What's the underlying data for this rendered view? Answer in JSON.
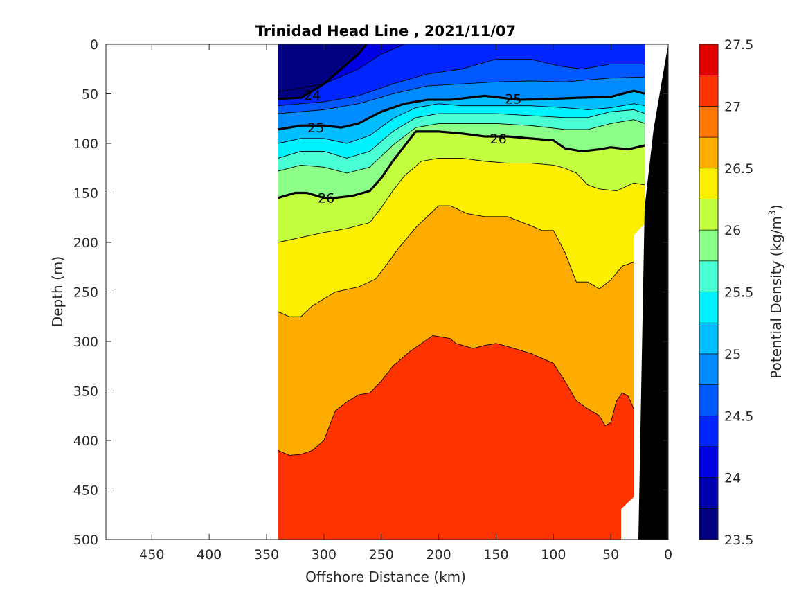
{
  "chart_data": {
    "type": "contour",
    "title": "Trinidad Head Line , 2021/11/07",
    "xlabel": "Offshore Distance (km)",
    "ylabel": "Depth (m)",
    "colorbar_label": "Potential Density (kg/m",
    "colorbar_label_sup": "3",
    "colorbar_label_close": ")",
    "xlim": [
      490,
      0
    ],
    "ylim": [
      0,
      500
    ],
    "x_reversed": true,
    "y_reversed": true,
    "xticks": [
      "450",
      "400",
      "350",
      "300",
      "250",
      "200",
      "150",
      "100",
      "50",
      "0"
    ],
    "yticks": [
      "0",
      "50",
      "100",
      "150",
      "200",
      "250",
      "300",
      "350",
      "400",
      "450",
      "500"
    ],
    "colorbar_range": [
      23.5,
      27.5
    ],
    "colorbar_ticks": [
      "23.5",
      "24",
      "24.5",
      "25",
      "25.5",
      "26",
      "26.5",
      "27",
      "27.5"
    ],
    "contour_interval": 0.25,
    "data_extent_km": [
      340,
      20
    ],
    "levels": [
      23.5,
      23.75,
      24.0,
      24.25,
      24.5,
      24.75,
      25.0,
      25.25,
      25.5,
      25.75,
      26.0,
      26.25,
      26.5,
      26.75,
      27.0,
      27.25
    ],
    "level_colors": [
      "#000080",
      "#0000b2",
      "#0000e5",
      "#0025ff",
      "#0058ff",
      "#008bff",
      "#00beff",
      "#00f1ff",
      "#49ffd4",
      "#8cff88",
      "#c3ff3f",
      "#fcf000",
      "#ffac00",
      "#ff7600",
      "#ff3300",
      "#e50000"
    ],
    "isopycnals": [
      {
        "level": 24.0,
        "x": [
          340,
          320,
          300,
          285,
          270,
          263
        ],
        "depth": [
          55,
          54,
          40,
          25,
          10,
          0
        ]
      },
      {
        "level": 24.25,
        "x": [
          340,
          300,
          270,
          250,
          230
        ],
        "depth": [
          48,
          40,
          25,
          10,
          0
        ]
      },
      {
        "level": 24.5,
        "x": [
          340,
          300,
          270,
          240,
          210,
          180,
          150,
          120,
          95,
          75,
          50,
          20
        ],
        "depth": [
          62,
          58,
          52,
          40,
          30,
          25,
          15,
          15,
          22,
          25,
          20,
          20
        ]
      },
      {
        "level": 24.75,
        "x": [
          340,
          300,
          270,
          240,
          210,
          180,
          150,
          120,
          90,
          70,
          50,
          20
        ],
        "depth": [
          70,
          66,
          60,
          50,
          42,
          40,
          38,
          37,
          38,
          36,
          34,
          33
        ]
      },
      {
        "level": 25.0,
        "x": [
          340,
          320,
          300,
          285,
          270,
          250,
          230,
          210,
          190,
          160,
          130,
          100,
          80,
          50,
          30,
          20
        ],
        "depth": [
          86,
          82,
          82,
          84,
          80,
          68,
          60,
          56,
          56,
          52,
          56,
          55,
          54,
          53,
          47,
          50
        ]
      },
      {
        "level": 25.25,
        "x": [
          340,
          320,
          300,
          280,
          260,
          240,
          220,
          200,
          180,
          150,
          120,
          90,
          70,
          50,
          30,
          20
        ],
        "depth": [
          100,
          95,
          95,
          100,
          92,
          75,
          64,
          60,
          62,
          62,
          62,
          64,
          66,
          64,
          60,
          62
        ]
      },
      {
        "level": 25.5,
        "x": [
          340,
          320,
          300,
          280,
          260,
          240,
          220,
          200,
          180,
          150,
          120,
          90,
          70,
          50,
          30,
          20
        ],
        "depth": [
          115,
          108,
          108,
          115,
          108,
          88,
          74,
          70,
          70,
          70,
          72,
          74,
          74,
          68,
          66,
          70
        ]
      },
      {
        "level": 25.75,
        "x": [
          340,
          320,
          300,
          280,
          260,
          240,
          220,
          200,
          180,
          150,
          120,
          90,
          70,
          50,
          30,
          20
        ],
        "depth": [
          128,
          122,
          124,
          130,
          124,
          102,
          84,
          80,
          80,
          80,
          82,
          86,
          86,
          80,
          76,
          80
        ]
      },
      {
        "level": 26.0,
        "x": [
          340,
          325,
          315,
          300,
          290,
          275,
          260,
          250,
          240,
          230,
          220,
          200,
          180,
          160,
          140,
          120,
          100,
          90,
          75,
          60,
          50,
          35,
          20
        ],
        "depth": [
          155,
          150,
          150,
          155,
          155,
          153,
          148,
          135,
          118,
          103,
          88,
          88,
          90,
          93,
          93,
          95,
          97,
          105,
          108,
          106,
          104,
          106,
          102
        ]
      },
      {
        "level": 26.25,
        "x": [
          340,
          320,
          300,
          280,
          260,
          250,
          240,
          230,
          215,
          200,
          180,
          160,
          140,
          120,
          100,
          90,
          80,
          70,
          60,
          45,
          30,
          20
        ],
        "depth": [
          200,
          195,
          190,
          186,
          180,
          165,
          148,
          133,
          118,
          115,
          115,
          118,
          120,
          120,
          122,
          125,
          130,
          142,
          146,
          148,
          140,
          142
        ]
      },
      {
        "level": 26.5,
        "x": [
          340,
          330,
          320,
          310,
          290,
          270,
          255,
          245,
          235,
          220,
          200,
          190,
          175,
          160,
          140,
          120,
          110,
          100,
          90,
          80,
          70,
          60,
          50,
          40,
          30
        ],
        "depth": [
          270,
          275,
          275,
          264,
          250,
          245,
          237,
          222,
          206,
          185,
          163,
          163,
          171,
          174,
          174,
          183,
          188,
          188,
          210,
          240,
          240,
          247,
          238,
          224,
          220
        ]
      },
      {
        "level": 26.75,
        "x": [
          340,
          330,
          320,
          310,
          300,
          290,
          280,
          270,
          260,
          250,
          240,
          225,
          205,
          190,
          185,
          170,
          160,
          150,
          140,
          120,
          100,
          90,
          80,
          70,
          60,
          55,
          50,
          45,
          40,
          35,
          30
        ],
        "depth": [
          410,
          415,
          414,
          410,
          400,
          370,
          361,
          354,
          352,
          340,
          325,
          310,
          294,
          297,
          302,
          307,
          304,
          302,
          305,
          312,
          322,
          340,
          360,
          368,
          375,
          385,
          382,
          360,
          352,
          355,
          368
        ]
      }
    ],
    "contour_labels": [
      {
        "text": "24",
        "x": 310,
        "depth": 51
      },
      {
        "text": "25",
        "x": 135,
        "depth": 55
      },
      {
        "text": "25",
        "x": 307,
        "depth": 84
      },
      {
        "text": "26",
        "x": 298,
        "depth": 155
      },
      {
        "text": "26",
        "x": 148,
        "depth": 95
      }
    ]
  }
}
